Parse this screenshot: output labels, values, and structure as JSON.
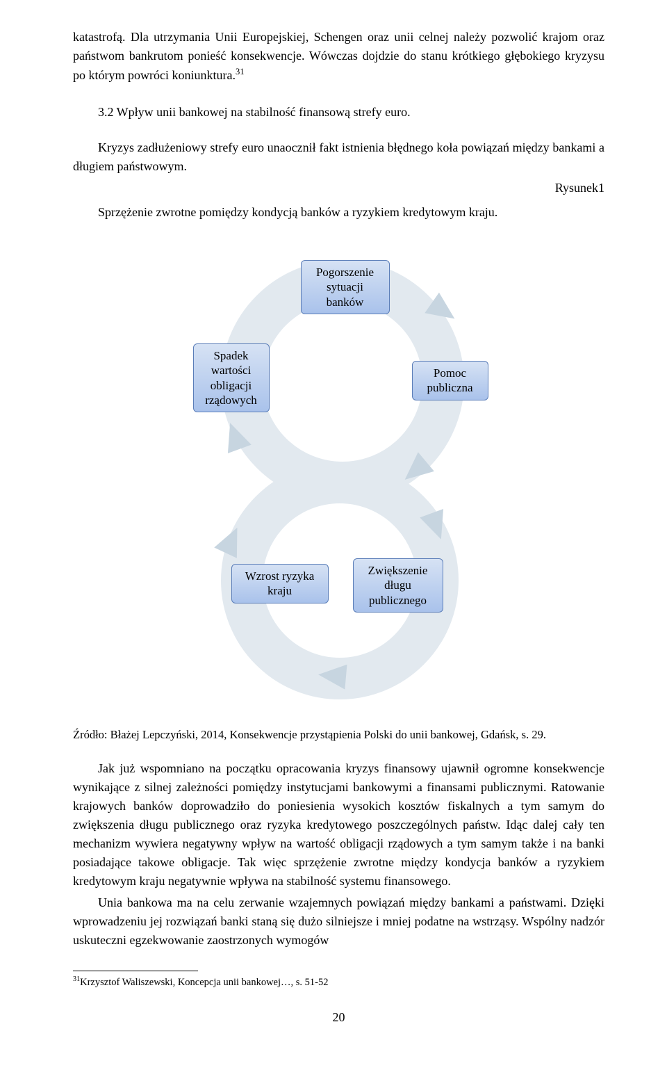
{
  "body": {
    "para1": "katastrofą. Dla utrzymania Unii Europejskiej, Schengen oraz unii celnej należy pozwolić krajom oraz państwom bankrutom ponieść konsekwencje. Wówczas dojdzie do stanu krótkiego głębokiego kryzysu po którym powróci koniunktura.",
    "para1_sup": "31",
    "heading": "3.2 Wpływ unii bankowej na stabilność finansową strefy euro.",
    "para2": "Kryzys zadłużeniowy strefy euro unaocznił fakt istnienia błędnego koła powiązań między bankami a długiem państwowym.",
    "figure_label": "Rysunek1",
    "figure_caption": "Sprzężenie zwrotne pomiędzy kondycją banków a ryzykiem kredytowym kraju.",
    "source": "Źródło: Błażej Lepczyński, 2014,  Konsekwencje przystąpienia Polski do unii bankowej, Gdańsk, s. 29.",
    "para3": "Jak już wspomniano na początku opracowania kryzys finansowy ujawnił ogromne konsekwencje wynikające z silnej zależności pomiędzy instytucjami bankowymi a finansami publicznymi. Ratowanie krajowych banków doprowadziło do poniesienia wysokich kosztów fiskalnych a tym samym do zwiększenia długu publicznego oraz ryzyka kredytowego poszczególnych państw. Idąc dalej cały ten mechanizm wywiera negatywny wpływ na wartość obligacji rządowych a tym samym także i na banki posiadające takowe obligacje. Tak więc sprzężenie zwrotne między kondycja banków a ryzykiem kredytowym kraju negatywnie wpływa na stabilność systemu finansowego.",
    "para4": "Unia bankowa ma na celu zerwanie wzajemnych powiązań między bankami a państwami. Dzięki wprowadzeniu jej rozwiązań banki staną się dużo silniejsze i mniej podatne na wstrząsy. Wspólny nadzór uskuteczni egzekwowanie zaostrzonych wymogów",
    "footnote_sup": "31",
    "footnote": "Krzysztof Waliszewski, Koncepcja unii bankowej…, s. 51-52",
    "page_number": "20"
  },
  "diagram": {
    "type": "flowchart",
    "ring_color": "#e2e9ef",
    "arrow_color": "#c7d5e0",
    "node_bg_top": "#d6e2f4",
    "node_bg_bottom": "#a9c2eb",
    "node_border": "#5a7db8",
    "node_text_color": "#000000",
    "node_fontsize": 17,
    "nodes": [
      {
        "id": "n1",
        "label": "Pogorszenie\nsytuacji\nbanków"
      },
      {
        "id": "n2",
        "label": "Pomoc\npubliczna"
      },
      {
        "id": "n3",
        "label": "Zwiększenie\ndługu\npublicznego"
      },
      {
        "id": "n4",
        "label": "Wzrost ryzyka\nkraju"
      },
      {
        "id": "n5",
        "label": "Spadek\nwartości\nobligacji\nrządowych"
      }
    ]
  }
}
